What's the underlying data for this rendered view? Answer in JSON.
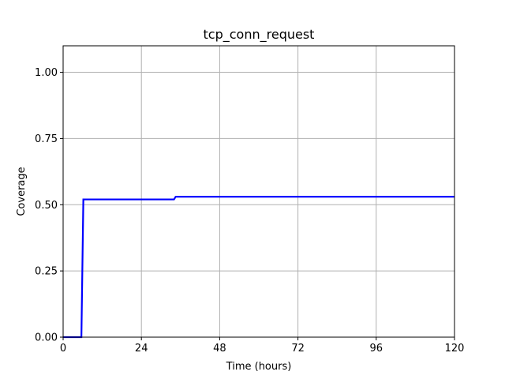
{
  "chart_data": {
    "type": "line",
    "title": "tcp_conn_request",
    "xlabel": "Time (hours)",
    "ylabel": "Coverage",
    "xlim": [
      0,
      120
    ],
    "ylim": [
      0,
      1.1
    ],
    "x_ticks": [
      0,
      24,
      48,
      72,
      96,
      120
    ],
    "x_tick_labels": [
      "0",
      "24",
      "48",
      "72",
      "96",
      "120"
    ],
    "y_ticks": [
      0,
      0.25,
      0.5,
      0.75,
      1.0
    ],
    "y_tick_labels": [
      "0.00",
      "0.25",
      "0.50",
      "0.75",
      "1.00"
    ],
    "grid": true,
    "legend": false,
    "series": [
      {
        "color": "#0000ff",
        "x": [
          0,
          5.6,
          6.2,
          34,
          34.5,
          120
        ],
        "y": [
          0,
          0,
          0.52,
          0.52,
          0.53,
          0.53
        ]
      }
    ]
  }
}
